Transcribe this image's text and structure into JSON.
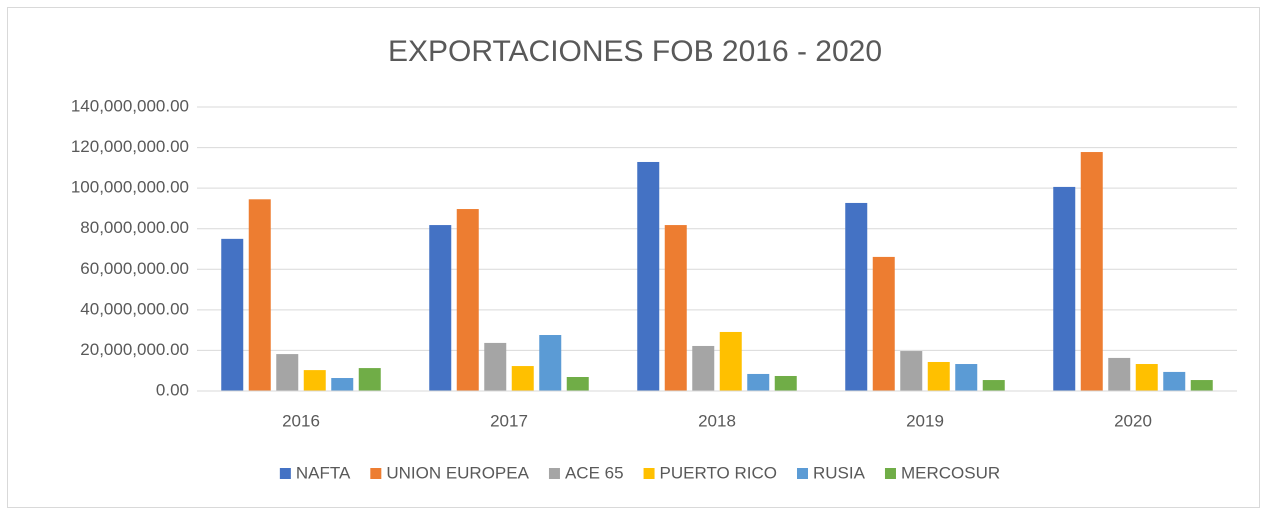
{
  "chart_data": {
    "type": "bar",
    "title": "EXPORTACIONES FOB 2016 - 2020",
    "categories": [
      "2016",
      "2017",
      "2018",
      "2019",
      "2020"
    ],
    "series": [
      {
        "name": "NAFTA",
        "color": "#4472c4",
        "values": [
          75000000,
          81800000,
          112900000,
          92700000,
          100600000
        ]
      },
      {
        "name": "UNION EUROPEA",
        "color": "#ed7d31",
        "values": [
          94500000,
          89700000,
          81800000,
          66100000,
          117800000
        ]
      },
      {
        "name": "ACE 65",
        "color": "#a5a5a5",
        "values": [
          18200000,
          23700000,
          22200000,
          19700000,
          16300000
        ]
      },
      {
        "name": "PUERTO RICO",
        "color": "#ffc000",
        "values": [
          10300000,
          12300000,
          29100000,
          14300000,
          13300000
        ]
      },
      {
        "name": "RUSIA",
        "color": "#5b9bd5",
        "values": [
          6400000,
          27600000,
          8400000,
          13300000,
          9400000
        ]
      },
      {
        "name": "MERCOSUR",
        "color": "#70ad47",
        "values": [
          11300000,
          6900000,
          7400000,
          5400000,
          5400000
        ]
      }
    ],
    "ylim": [
      0,
      140000000
    ],
    "yticks": [
      {
        "value": 0,
        "label": "0.00"
      },
      {
        "value": 20000000,
        "label": "20,000,000.00"
      },
      {
        "value": 40000000,
        "label": "40,000,000.00"
      },
      {
        "value": 60000000,
        "label": "60,000,000.00"
      },
      {
        "value": 80000000,
        "label": "80,000,000.00"
      },
      {
        "value": 100000000,
        "label": "100,000,000.00"
      },
      {
        "value": 120000000,
        "label": "120,000,000.00"
      },
      {
        "value": 140000000,
        "label": "140,000,000.00"
      }
    ],
    "grid": true,
    "legend": "bottom"
  }
}
